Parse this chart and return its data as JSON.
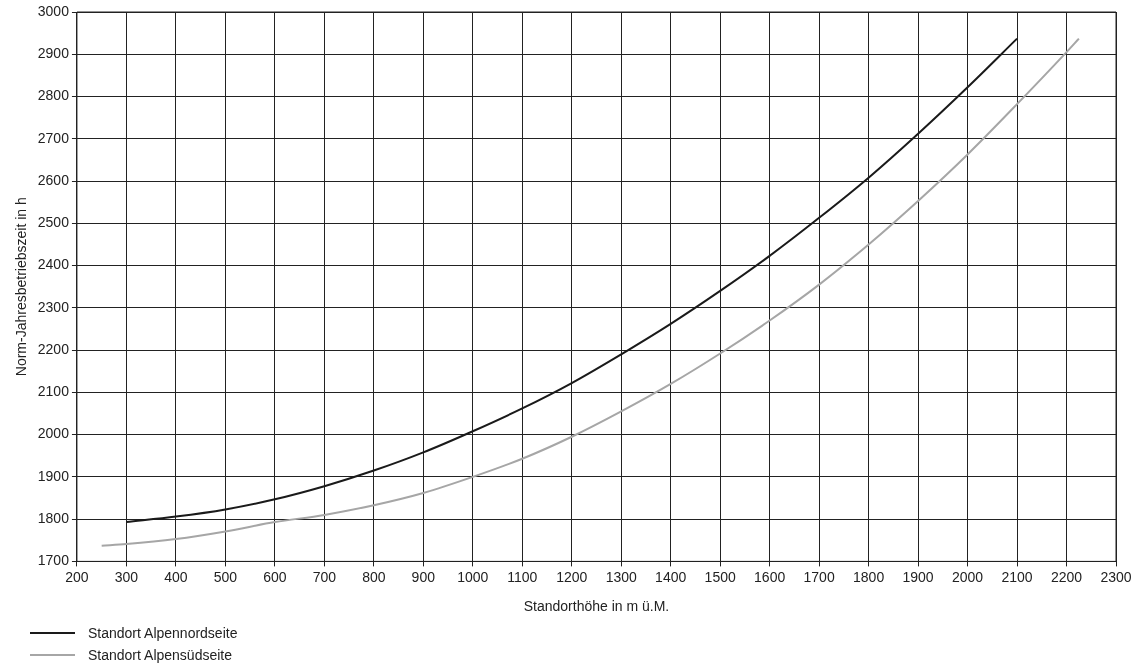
{
  "chart_data": {
    "type": "line",
    "xlabel": "Standorthöhe in m ü.M.",
    "ylabel": "Norm-Jahresbetriebszeit in h",
    "xlim": [
      200,
      2300
    ],
    "xticks": [
      200,
      300,
      400,
      500,
      600,
      700,
      800,
      900,
      1000,
      1100,
      1200,
      1300,
      1400,
      1500,
      1600,
      1700,
      1800,
      1900,
      2000,
      2100,
      2200,
      2300
    ],
    "ylim": [
      1700,
      3000
    ],
    "yticks": [
      1700,
      1800,
      1900,
      2000,
      2100,
      2200,
      2300,
      2400,
      2500,
      2600,
      2700,
      2800,
      2900,
      3000
    ],
    "grid": true,
    "legend": "bottom left",
    "marker": "none",
    "line_style": "solid",
    "series": [
      {
        "name": "Standort Alpennordseite",
        "color": "#1a1a1a",
        "x": [
          300,
          400,
          500,
          600,
          700,
          800,
          900,
          1000,
          1100,
          1200,
          1300,
          1400,
          1500,
          1600,
          1700,
          1800,
          1900,
          2000,
          2100
        ],
        "values": [
          1793,
          1806,
          1823,
          1847,
          1878,
          1915,
          1958,
          2008,
          2062,
          2122,
          2190,
          2262,
          2340,
          2423,
          2513,
          2608,
          2712,
          2822,
          2937
        ]
      },
      {
        "name": "Standort Alpensüdseite",
        "color": "#a6a6a6",
        "x": [
          250,
          300,
          400,
          500,
          600,
          700,
          800,
          900,
          1000,
          1100,
          1200,
          1300,
          1400,
          1500,
          1600,
          1700,
          1800,
          1900,
          2000,
          2100,
          2200,
          2225
        ],
        "values": [
          1737,
          1741,
          1753,
          1771,
          1793,
          1810,
          1833,
          1862,
          1900,
          1943,
          1995,
          2055,
          2120,
          2192,
          2270,
          2355,
          2450,
          2553,
          2663,
          2782,
          2905,
          2937
        ]
      }
    ]
  }
}
